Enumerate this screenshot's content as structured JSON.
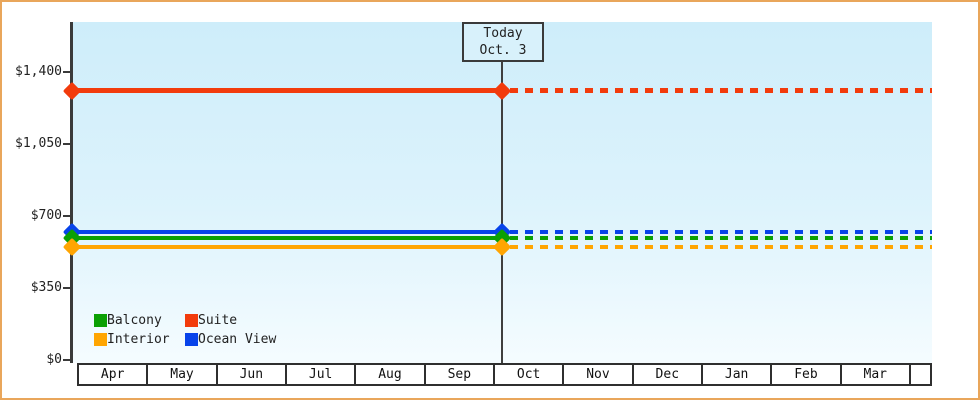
{
  "frame": {
    "border_color": "#E9A65B",
    "background": "#FFFFFF"
  },
  "annotation": {
    "line1": "Today",
    "line2": "Oct. 3"
  },
  "legend": {
    "items": [
      {
        "label": "Balcony",
        "color": "#0BA004"
      },
      {
        "label": "Suite",
        "color": "#F23B0C"
      },
      {
        "label": "Interior",
        "color": "#FFA502"
      },
      {
        "label": "Ocean View",
        "color": "#0743EA"
      }
    ]
  },
  "chart_data": {
    "type": "line",
    "title": "",
    "x_categories": [
      "Apr",
      "May",
      "Jun",
      "Jul",
      "Aug",
      "Sep",
      "Oct",
      "Nov",
      "Dec",
      "Jan",
      "Feb",
      "Mar"
    ],
    "y_ticks": [
      {
        "value": 0,
        "label": "$0"
      },
      {
        "value": 350,
        "label": "$350"
      },
      {
        "value": 700,
        "label": "$700"
      },
      {
        "value": 1050,
        "label": "$1,050"
      },
      {
        "value": 1400,
        "label": "$1,400"
      }
    ],
    "ylim": [
      0,
      1645
    ],
    "grid": false,
    "legend_position": "bottom-left inside plot",
    "today_marker": {
      "label": "Today Oct. 3",
      "x_between": [
        "Sep",
        "Oct"
      ]
    },
    "series": [
      {
        "name": "Suite",
        "color": "#F23B0C",
        "value_usd": 1310,
        "thickness": 5,
        "style": "solid until today, dotted projection after"
      },
      {
        "name": "Ocean View",
        "color": "#0743EA",
        "value_usd": 620,
        "thickness": 4,
        "style": "solid until today, dotted projection after"
      },
      {
        "name": "Balcony",
        "color": "#0BA004",
        "value_usd": 595,
        "thickness": 4,
        "style": "solid until today, dotted projection after"
      },
      {
        "name": "Interior",
        "color": "#FFA502",
        "value_usd": 550,
        "thickness": 4,
        "style": "solid until today, dotted projection after"
      }
    ],
    "notes": "Each cabin-category price is flat from Apr through today (Oct. 3), then continues as a dotted line through Mar; values estimated from axis gridlines"
  }
}
